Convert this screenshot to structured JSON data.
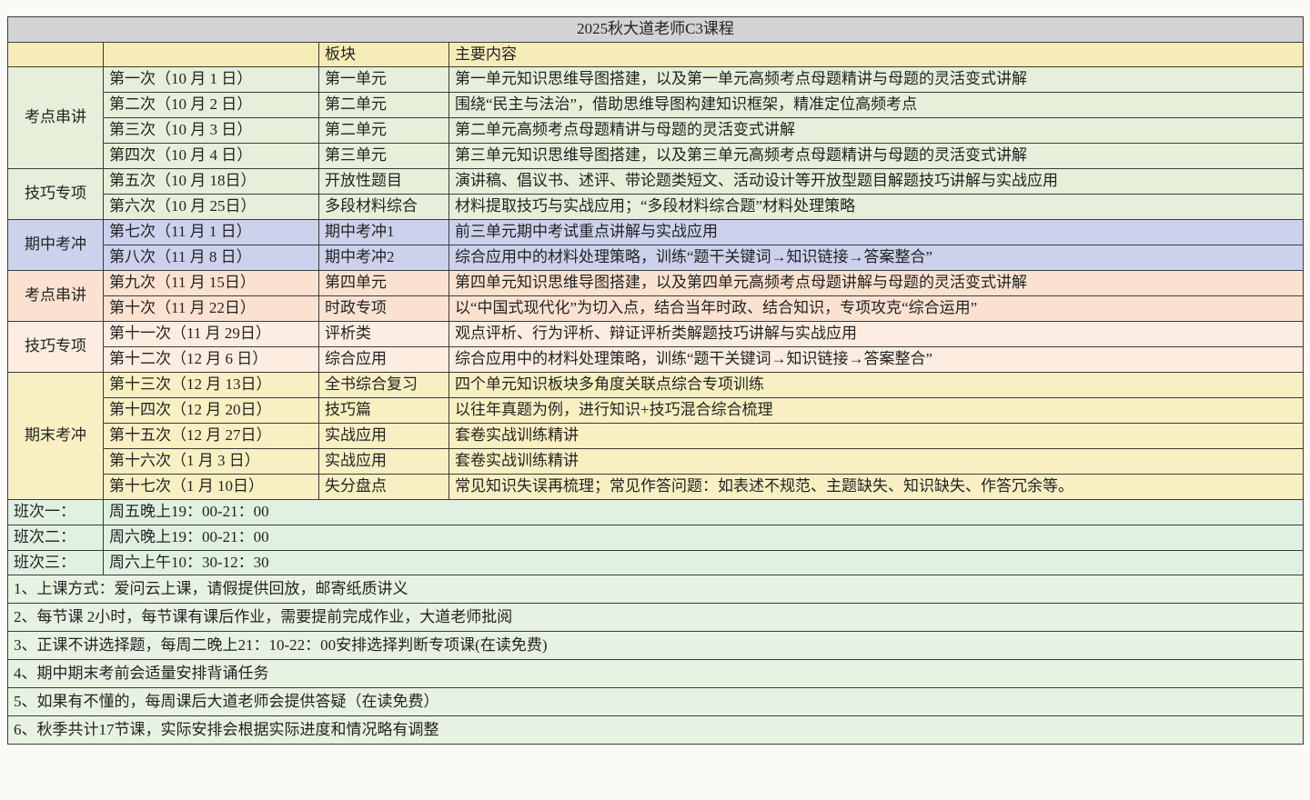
{
  "title": "2025秋大道老师C3课程",
  "header": {
    "module": "板块",
    "content": "主要内容"
  },
  "groups": [
    {
      "label": "考点串讲",
      "row_count": 4,
      "color": "green"
    },
    {
      "label": "技巧专项",
      "row_count": 2,
      "color": "green"
    },
    {
      "label": "期中考冲",
      "row_count": 2,
      "color": "lavender"
    },
    {
      "label": "考点串讲",
      "row_count": 2,
      "color": "peach"
    },
    {
      "label": "技巧专项",
      "row_count": 2,
      "color": "peach_light"
    },
    {
      "label": "期末考冲",
      "row_count": 5,
      "color": "yellow"
    }
  ],
  "rows": [
    {
      "session": "第一次（10 月 1 日）",
      "module": "第一单元",
      "content": "第一单元知识思维导图搭建，以及第一单元高频考点母题精讲与母题的灵活变式讲解"
    },
    {
      "session": "第二次（10 月 2 日）",
      "module": "第二单元",
      "content": "围绕“民主与法治”，借助思维导图构建知识框架，精准定位高频考点"
    },
    {
      "session": "第三次（10 月 3 日）",
      "module": "第二单元",
      "content": "第二单元高频考点母题精讲与母题的灵活变式讲解"
    },
    {
      "session": "第四次（10 月 4 日）",
      "module": "第三单元",
      "content": "第三单元知识思维导图搭建，以及第三单元高频考点母题精讲与母题的灵活变式讲解"
    },
    {
      "session": "第五次（10 月 18日）",
      "module": "开放性题目",
      "content": "演讲稿、倡议书、述评、带论题类短文、活动设计等开放型题目解题技巧讲解与实战应用"
    },
    {
      "session": "第六次（10 月 25日）",
      "module": "多段材料综合",
      "content": "材料提取技巧与实战应用；“多段材料综合题”材料处理策略"
    },
    {
      "session": "第七次（11 月 1 日）",
      "module": "期中考冲1",
      "content": "前三单元期中考试重点讲解与实战应用"
    },
    {
      "session": "第八次（11 月 8 日）",
      "module": "期中考冲2",
      "content": "综合应用中的材料处理策略，训练“题干关键词→知识链接→答案整合”"
    },
    {
      "session": "第九次（11 月 15日）",
      "module": "第四单元",
      "content": "第四单元知识思维导图搭建，以及第四单元高频考点母题讲解与母题的灵活变式讲解"
    },
    {
      "session": "第十次（11 月 22日）",
      "module": "时政专项",
      "content": "以“中国式现代化”为切入点，结合当年时政、结合知识，专项攻克“综合运用”"
    },
    {
      "session": "第十一次（11 月 29日）",
      "module": "评析类",
      "content": "观点评析、行为评析、辩证评析类解题技巧讲解与实战应用"
    },
    {
      "session": "第十二次（12 月 6 日）",
      "module": "综合应用",
      "content": "综合应用中的材料处理策略，训练“题干关键词→知识链接→答案整合”"
    },
    {
      "session": "第十三次（12 月 13日）",
      "module": "全书综合复习",
      "content": "四个单元知识板块多角度关联点综合专项训练"
    },
    {
      "session": "第十四次（12 月 20日）",
      "module": "技巧篇",
      "content": "以往年真题为例，进行知识+技巧混合综合梳理"
    },
    {
      "session": "第十五次（12 月 27日）",
      "module": "实战应用",
      "content": "套卷实战训练精讲"
    },
    {
      "session": "第十六次（1 月 3 日）",
      "module": "实战应用",
      "content": "套卷实战训练精讲"
    },
    {
      "session": "第十七次（1 月 10日）",
      "module": "失分盘点",
      "content": "常见知识失误再梳理；常见作答问题：如表述不规范、主题缺失、知识缺失、作答冗余等。"
    }
  ],
  "schedule": [
    {
      "label": "班次一：",
      "time": "周五晚上19：00-21：00"
    },
    {
      "label": "班次二：",
      "time": "周六晚上19：00-21：00"
    },
    {
      "label": "班次三：",
      "time": "周六上午10：30-12：30"
    }
  ],
  "notes": [
    "1、上课方式：爱问云上课，请假提供回放，邮寄纸质讲义",
    "2、每节课 2小时，每节课有课后作业，需要提前完成作业，大道老师批阅",
    "3、正课不讲选择题，每周二晚上21：10-22：00安排选择判断专项课(在读免费)",
    "4、期中期末考前会适量安排背诵任务",
    "5、如果有不懂的，每周课后大道老师会提供答疑（在读免费）",
    "6、秋季共计17节课，实际安排会根据实际进度和情况略有调整"
  ],
  "colors": {
    "title_bg": "#d3d3d3",
    "header_bg": "#f6ecb8",
    "green": "#e5efd9",
    "lavender": "#ccd1ec",
    "peach": "#fbe2d0",
    "peach_light": "#fcEDE0",
    "yellow": "#f8f0c2",
    "mint": "#e0f0e1",
    "note_bg": "#e7f2e2"
  }
}
